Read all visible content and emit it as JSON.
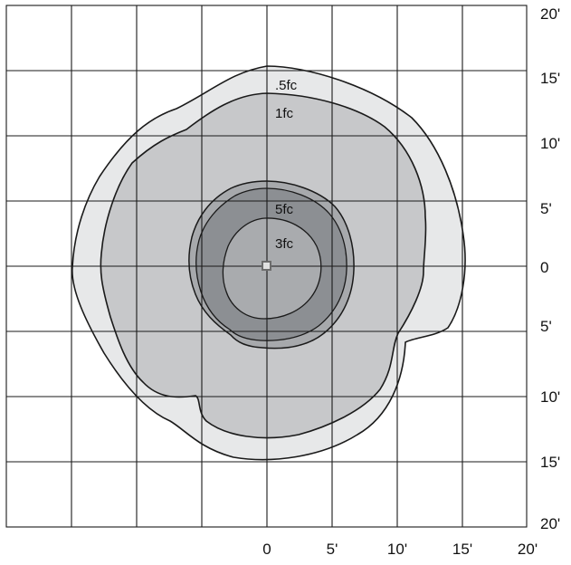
{
  "colors": {
    "background": "#ffffff",
    "grid": "#1a1a1a",
    "outline": "#1a1a1a",
    "contour_0_5fc": "#e7e8e9",
    "contour_1fc": "#c7c8ca",
    "contour_5fc": "#a7a9ac",
    "contour_3fc_ring": "#8c8f93",
    "contour_3fc_core": "#a9abae",
    "fixture": "#6c6c6c"
  },
  "right_axis_labels": [
    "20'",
    "15'",
    "10'",
    "5'",
    "0",
    "5'",
    "10'",
    "15'",
    "20'"
  ],
  "bottom_axis_labels": [
    "0",
    "5'",
    "10'",
    "15'",
    "20'"
  ],
  "contour_labels": {
    "half_fc": ".5fc",
    "one_fc": "1fc",
    "five_fc": "5fc",
    "three_fc": "3fc"
  },
  "fixture_icon": "square-fixture-icon"
}
